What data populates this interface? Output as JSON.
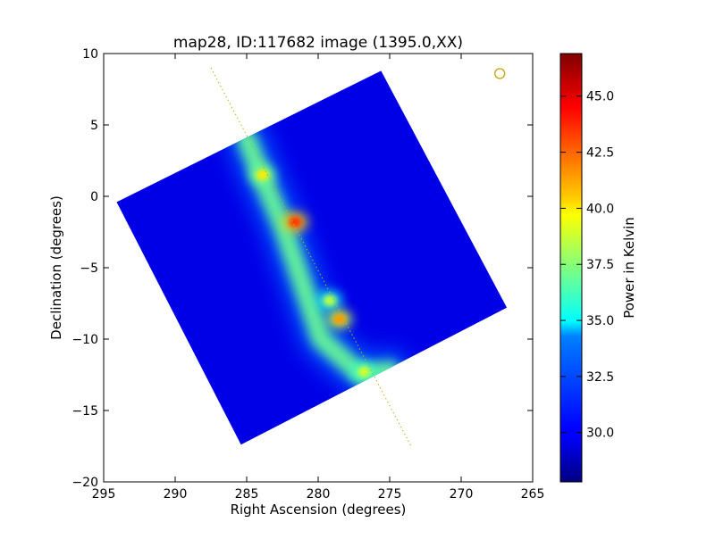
{
  "chart_data": {
    "type": "heatmap",
    "title": "map28, ID:117682 image (1395.0,XX)",
    "xlabel": "Right Ascension (degrees)",
    "ylabel": "Declination (degrees)",
    "xlim": [
      295,
      265
    ],
    "ylim": [
      -20,
      10
    ],
    "x_ticks": [
      295,
      290,
      285,
      280,
      275,
      270,
      265
    ],
    "x_tick_labels": [
      "295",
      "290",
      "285",
      "280",
      "275",
      "270",
      "265"
    ],
    "y_ticks": [
      10,
      5,
      0,
      -5,
      -10,
      -15,
      -20
    ],
    "y_tick_labels": [
      "10",
      "5",
      "0",
      "−5",
      "−10",
      "−15",
      "−20"
    ],
    "grid": false,
    "colormap": "jet",
    "colorbar": {
      "label": "Power in Kelvin",
      "range": [
        27.8,
        46.9
      ],
      "ticks": [
        30.0,
        32.5,
        35.0,
        37.5,
        40.0,
        42.5,
        45.0
      ],
      "tick_labels": [
        "30.0",
        "32.5",
        "35.0",
        "37.5",
        "40.0",
        "42.5",
        "45.0"
      ]
    },
    "map_footprint_corners": [
      [
        294.1,
        -0.4
      ],
      [
        285.4,
        -17.4
      ],
      [
        266.8,
        -7.8
      ],
      [
        275.6,
        8.8
      ]
    ],
    "background_level": 29.5,
    "galactic_plane_ridge": {
      "points": [
        [
          285.0,
          4.0
        ],
        [
          284.0,
          1.5
        ],
        [
          282.5,
          -2.0
        ],
        [
          280.8,
          -7.0
        ],
        [
          279.8,
          -10.0
        ],
        [
          277.0,
          -12.5
        ],
        [
          275.0,
          -12.2
        ]
      ],
      "peak_level": 37.0
    },
    "hot_spots": [
      {
        "ra": 283.9,
        "dec": 1.5,
        "value": 40.0
      },
      {
        "ra": 281.6,
        "dec": -1.8,
        "value": 43.5
      },
      {
        "ra": 279.2,
        "dec": -7.3,
        "value": 38.5
      },
      {
        "ra": 278.5,
        "dec": -8.6,
        "value": 41.5
      },
      {
        "ra": 276.8,
        "dec": -12.3,
        "value": 39.0
      }
    ],
    "reference_line": {
      "color": "#b5b51a",
      "points": [
        [
          287.5,
          9.0
        ],
        [
          273.5,
          -17.5
        ]
      ]
    },
    "reference_marker": {
      "ra": 267.3,
      "dec": 8.6,
      "color": "#c9a400"
    }
  }
}
